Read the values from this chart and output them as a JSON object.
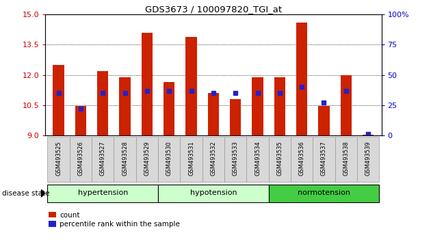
{
  "title": "GDS3673 / 100097820_TGI_at",
  "samples": [
    "GSM493525",
    "GSM493526",
    "GSM493527",
    "GSM493528",
    "GSM493529",
    "GSM493530",
    "GSM493531",
    "GSM493532",
    "GSM493533",
    "GSM493534",
    "GSM493535",
    "GSM493536",
    "GSM493537",
    "GSM493538",
    "GSM493539"
  ],
  "count_values": [
    12.5,
    10.45,
    12.2,
    11.9,
    14.1,
    11.65,
    13.9,
    11.1,
    10.8,
    11.9,
    11.9,
    14.6,
    10.45,
    12.0,
    9.05
  ],
  "percentile_values": [
    35,
    22,
    35,
    35,
    37,
    37,
    37,
    35,
    35,
    35,
    35,
    40,
    27,
    37,
    1
  ],
  "ylim_left": [
    9,
    15
  ],
  "ylim_right": [
    0,
    100
  ],
  "yticks_left": [
    9,
    10.5,
    12,
    13.5,
    15
  ],
  "yticks_right": [
    0,
    25,
    50,
    75,
    100
  ],
  "bar_color": "#cc2200",
  "dot_color": "#2222cc",
  "bar_width": 0.5,
  "bg_color": "#ffffff",
  "label_color_left": "#cc0000",
  "label_color_right": "#0000cc",
  "group_list": [
    {
      "name": "hypertension",
      "start": 0,
      "end": 4,
      "color": "#ccffcc"
    },
    {
      "name": "hypotension",
      "start": 5,
      "end": 9,
      "color": "#ccffcc"
    },
    {
      "name": "normotension",
      "start": 10,
      "end": 14,
      "color": "#44cc44"
    }
  ]
}
